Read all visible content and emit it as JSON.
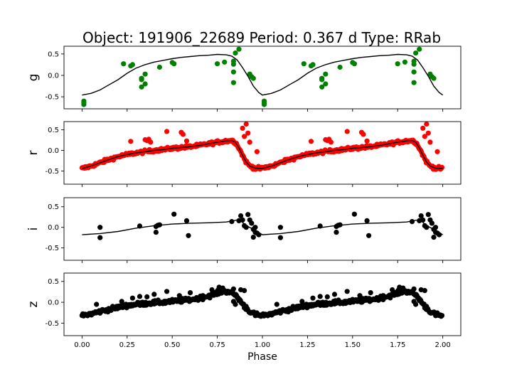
{
  "title": "Object: 191906_22689    Period: 0.367 d    Type: RRab",
  "xlabel": "Phase",
  "xticks": [
    "0.00",
    "0.25",
    "0.50",
    "0.75",
    "1.00",
    "1.25",
    "1.50",
    "1.75",
    "2.00"
  ],
  "chart_data": [
    {
      "type": "scatter",
      "ylabel": "g",
      "color": "#008000",
      "xlim": [
        -0.1,
        2.1
      ],
      "ylim": [
        -0.78,
        0.68
      ],
      "yticks": [
        "0.5",
        "0.0",
        "-0.5"
      ],
      "ytick_values": [
        0.5,
        0.0,
        -0.5
      ],
      "points": [
        [
          0.01,
          -0.6
        ],
        [
          0.01,
          -0.64
        ],
        [
          0.01,
          -0.68
        ],
        [
          0.23,
          0.27
        ],
        [
          0.27,
          0.22
        ],
        [
          0.28,
          0.25
        ],
        [
          0.33,
          -0.07
        ],
        [
          0.33,
          -0.1
        ],
        [
          0.33,
          -0.27
        ],
        [
          0.35,
          -0.2
        ],
        [
          0.35,
          0.03
        ],
        [
          0.43,
          0.19
        ],
        [
          0.5,
          0.3
        ],
        [
          0.51,
          0.27
        ],
        [
          0.75,
          0.27
        ],
        [
          0.79,
          0.31
        ],
        [
          0.84,
          0.33
        ],
        [
          0.84,
          0.26
        ],
        [
          0.85,
          0.52
        ],
        [
          0.87,
          0.61
        ],
        [
          0.84,
          0.08
        ],
        [
          0.84,
          -0.17
        ],
        [
          0.93,
          0.03
        ],
        [
          0.94,
          -0.03
        ],
        [
          0.95,
          -0.07
        ]
      ],
      "model": [
        [
          0.0,
          -0.46
        ],
        [
          0.05,
          -0.42
        ],
        [
          0.1,
          -0.34
        ],
        [
          0.15,
          -0.22
        ],
        [
          0.2,
          -0.1
        ],
        [
          0.25,
          0.05
        ],
        [
          0.3,
          0.17
        ],
        [
          0.35,
          0.25
        ],
        [
          0.4,
          0.31
        ],
        [
          0.45,
          0.35
        ],
        [
          0.5,
          0.39
        ],
        [
          0.55,
          0.42
        ],
        [
          0.6,
          0.44
        ],
        [
          0.65,
          0.46
        ],
        [
          0.7,
          0.47
        ],
        [
          0.75,
          0.49
        ],
        [
          0.8,
          0.48
        ],
        [
          0.83,
          0.45
        ],
        [
          0.86,
          0.36
        ],
        [
          0.89,
          0.18
        ],
        [
          0.92,
          -0.02
        ],
        [
          0.95,
          -0.25
        ],
        [
          0.98,
          -0.4
        ],
        [
          1.0,
          -0.46
        ]
      ]
    },
    {
      "type": "scatter",
      "ylabel": "r",
      "color": "#ff0000",
      "xlim": [
        -0.1,
        2.1
      ],
      "ylim": [
        -0.82,
        0.7
      ],
      "yticks": [
        "0.5",
        "0.0",
        "-0.5"
      ],
      "ytick_values": [
        0.5,
        0.0,
        -0.5
      ],
      "scatter_sigma": 0.035,
      "extra_points": [
        [
          0.27,
          0.22
        ],
        [
          0.35,
          0.26
        ],
        [
          0.36,
          0.24
        ],
        [
          0.37,
          0.27
        ],
        [
          0.38,
          0.2
        ],
        [
          0.47,
          0.46
        ],
        [
          0.55,
          0.44
        ],
        [
          0.56,
          0.39
        ],
        [
          0.58,
          0.23
        ],
        [
          0.89,
          0.54
        ],
        [
          0.91,
          0.64
        ],
        [
          0.92,
          0.42
        ],
        [
          0.9,
          0.34
        ],
        [
          0.93,
          0.2
        ],
        [
          0.97,
          -0.03
        ]
      ],
      "model": [
        [
          0.0,
          -0.44
        ],
        [
          0.05,
          -0.38
        ],
        [
          0.1,
          -0.3
        ],
        [
          0.15,
          -0.22
        ],
        [
          0.2,
          -0.15
        ],
        [
          0.25,
          -0.1
        ],
        [
          0.3,
          -0.06
        ],
        [
          0.35,
          -0.03
        ],
        [
          0.4,
          0.0
        ],
        [
          0.45,
          0.02
        ],
        [
          0.5,
          0.05
        ],
        [
          0.55,
          0.07
        ],
        [
          0.6,
          0.09
        ],
        [
          0.65,
          0.12
        ],
        [
          0.7,
          0.16
        ],
        [
          0.75,
          0.2
        ],
        [
          0.8,
          0.23
        ],
        [
          0.83,
          0.24
        ],
        [
          0.85,
          0.2
        ],
        [
          0.87,
          0.06
        ],
        [
          0.89,
          -0.12
        ],
        [
          0.91,
          -0.28
        ],
        [
          0.93,
          -0.38
        ],
        [
          0.96,
          -0.43
        ],
        [
          1.0,
          -0.44
        ]
      ]
    },
    {
      "type": "scatter",
      "ylabel": "i",
      "color": "#000000",
      "xlim": [
        -0.1,
        2.1
      ],
      "ylim": [
        -0.8,
        0.72
      ],
      "yticks": [
        "0.5",
        "0.0",
        "-0.5"
      ],
      "ytick_values": [
        0.5,
        0.0,
        -0.5
      ],
      "points": [
        [
          0.1,
          0.0
        ],
        [
          0.1,
          -0.25
        ],
        [
          0.32,
          0.03
        ],
        [
          0.41,
          0.02
        ],
        [
          0.42,
          0.05
        ],
        [
          0.43,
          0.06
        ],
        [
          0.41,
          -0.12
        ],
        [
          0.51,
          0.32
        ],
        [
          0.58,
          0.16
        ],
        [
          0.59,
          -0.2
        ],
        [
          0.83,
          0.14
        ],
        [
          0.87,
          0.16
        ],
        [
          0.88,
          0.28
        ],
        [
          0.89,
          0.18
        ],
        [
          0.9,
          0.04
        ],
        [
          0.91,
          0.0
        ],
        [
          0.92,
          0.31
        ],
        [
          0.93,
          0.18
        ],
        [
          0.94,
          0.1
        ],
        [
          0.95,
          -0.05
        ],
        [
          0.95,
          -0.24
        ],
        [
          0.96,
          -0.12
        ],
        [
          0.97,
          -0.14
        ],
        [
          0.98,
          -0.18
        ],
        [
          0.96,
          0.0
        ]
      ],
      "model": [
        [
          0.0,
          -0.18
        ],
        [
          0.1,
          -0.15
        ],
        [
          0.2,
          -0.1
        ],
        [
          0.3,
          -0.02
        ],
        [
          0.4,
          0.04
        ],
        [
          0.5,
          0.08
        ],
        [
          0.6,
          0.1
        ],
        [
          0.7,
          0.11
        ],
        [
          0.8,
          0.13
        ],
        [
          0.86,
          0.18
        ],
        [
          0.88,
          0.16
        ],
        [
          0.9,
          0.08
        ],
        [
          0.92,
          0.02
        ],
        [
          0.95,
          -0.05
        ],
        [
          1.0,
          -0.18
        ]
      ]
    },
    {
      "type": "scatter",
      "ylabel": "z",
      "color": "#000000",
      "xlim": [
        -0.1,
        2.1
      ],
      "ylim": [
        -0.8,
        0.7
      ],
      "yticks": [
        "0.5",
        "0.0",
        "-0.5"
      ],
      "ytick_values": [
        0.5,
        0.0,
        -0.5
      ],
      "scatter_sigma": 0.045,
      "extra_points": [
        [
          0.08,
          -0.05
        ],
        [
          0.22,
          0.02
        ],
        [
          0.28,
          0.1
        ],
        [
          0.32,
          0.14
        ],
        [
          0.36,
          0.13
        ],
        [
          0.4,
          0.19
        ],
        [
          0.47,
          0.26
        ],
        [
          0.5,
          0.04
        ],
        [
          0.54,
          0.16
        ],
        [
          0.6,
          0.23
        ],
        [
          0.67,
          0.16
        ],
        [
          0.72,
          0.3
        ],
        [
          0.76,
          0.36
        ],
        [
          0.78,
          0.34
        ],
        [
          0.84,
          0.32
        ],
        [
          0.88,
          0.3
        ],
        [
          0.9,
          0.28
        ],
        [
          0.84,
          0.02
        ],
        [
          0.85,
          -0.05
        ],
        [
          0.91,
          -0.1
        ]
      ],
      "model": [
        [
          0.0,
          -0.32
        ],
        [
          0.05,
          -0.28
        ],
        [
          0.1,
          -0.22
        ],
        [
          0.15,
          -0.17
        ],
        [
          0.2,
          -0.12
        ],
        [
          0.25,
          -0.08
        ],
        [
          0.3,
          -0.05
        ],
        [
          0.35,
          -0.03
        ],
        [
          0.4,
          -0.01
        ],
        [
          0.45,
          0.0
        ],
        [
          0.5,
          0.02
        ],
        [
          0.55,
          0.04
        ],
        [
          0.6,
          0.06
        ],
        [
          0.65,
          0.1
        ],
        [
          0.7,
          0.15
        ],
        [
          0.75,
          0.22
        ],
        [
          0.78,
          0.26
        ],
        [
          0.82,
          0.25
        ],
        [
          0.85,
          0.18
        ],
        [
          0.88,
          0.02
        ],
        [
          0.9,
          -0.1
        ],
        [
          0.93,
          -0.22
        ],
        [
          0.96,
          -0.3
        ],
        [
          1.0,
          -0.32
        ]
      ]
    }
  ]
}
